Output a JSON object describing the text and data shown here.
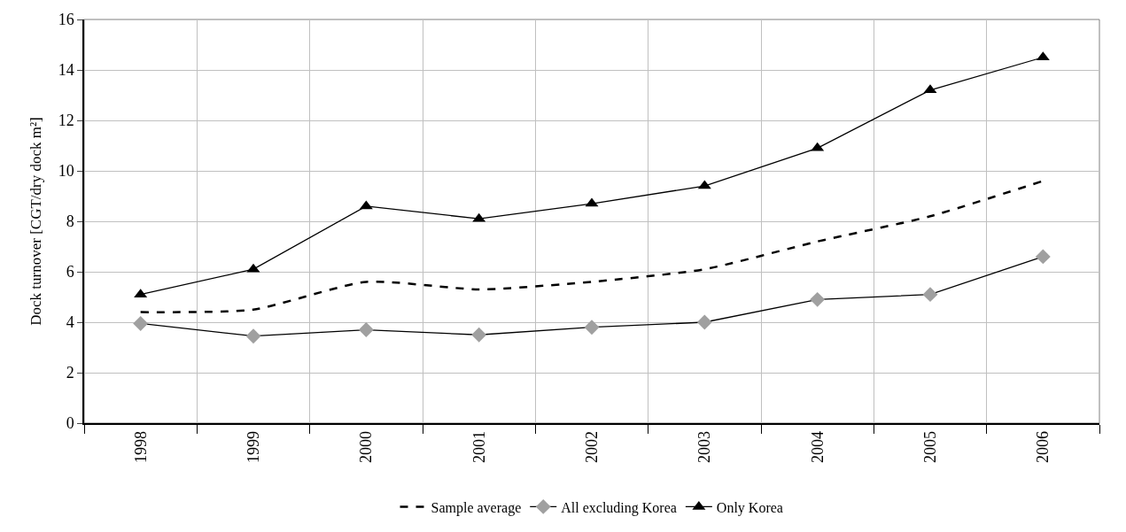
{
  "chart_data": {
    "type": "line",
    "ylabel": "Dock turnover [CGT/dry dock m²]",
    "categories": [
      "1998",
      "1999",
      "2000",
      "2001",
      "2002",
      "2003",
      "2004",
      "2005",
      "2006"
    ],
    "series": [
      {
        "name": "Sample average",
        "color": "#000000",
        "line_style": "dashed",
        "marker": "none",
        "values": [
          4.4,
          4.5,
          5.6,
          5.3,
          5.6,
          6.1,
          7.2,
          8.2,
          9.6
        ]
      },
      {
        "name": "All excluding Korea",
        "color": "#000000",
        "colors": [
          "#a0a0a0",
          "#a0a0a0",
          "#a0a0a0",
          "#a0a0a0",
          "#a0a0a0",
          "#a0a0a0",
          "#a0a0a0",
          "#a0a0a0",
          "#a0a0a0"
        ],
        "line_style": "solid",
        "marker": "diamond",
        "values": [
          3.95,
          3.45,
          3.7,
          3.5,
          3.8,
          4.0,
          4.9,
          5.1,
          6.6
        ]
      },
      {
        "name": "Only Korea",
        "color": "#000000",
        "line_style": "solid",
        "marker": "triangle",
        "values": [
          5.1,
          6.1,
          8.6,
          8.1,
          8.7,
          9.4,
          10.9,
          13.2,
          14.5
        ]
      }
    ],
    "ylim": [
      0,
      16
    ],
    "yticks": [
      0,
      2,
      4,
      6,
      8,
      10,
      12,
      14,
      16
    ],
    "grid": true,
    "legend": "bottom"
  }
}
